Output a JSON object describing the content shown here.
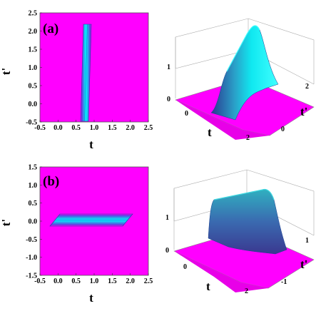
{
  "colors": {
    "background": "#ff00ff",
    "peak": "#00e0ff",
    "mid": "#3060d0"
  },
  "chart_data": [
    {
      "type": "heatmap",
      "panel_label": "(a)",
      "xlabel": "t",
      "ylabel": "t'",
      "xlim": [
        -0.5,
        2.5
      ],
      "ylim": [
        -0.5,
        2.5
      ],
      "xticks": [
        "-0.5",
        "0.0",
        "0.5",
        "1.0",
        "1.5",
        "2.0",
        "2.5"
      ],
      "yticks": [
        "-0.5",
        "0.0",
        "0.5",
        "1.0",
        "1.5",
        "2.0",
        "2.5"
      ],
      "band": {
        "t_center": 1.0,
        "t_halfwidth": 0.15,
        "tp_range": [
          -0.2,
          2.2
        ],
        "skew": 0.35,
        "orientation": "vertical"
      }
    },
    {
      "type": "surface",
      "xlabel": "t",
      "ylabel": "t'",
      "zticks": [
        "0",
        "1"
      ],
      "xticks": [
        "0",
        "2"
      ],
      "yticks": [
        "0",
        "2"
      ]
    },
    {
      "type": "heatmap",
      "panel_label": "(b)",
      "xlabel": "t",
      "ylabel": "t'",
      "xlim": [
        -0.5,
        2.5
      ],
      "ylim": [
        -1.5,
        1.5
      ],
      "xticks": [
        "-0.5",
        "0.0",
        "0.5",
        "1.0",
        "1.5",
        "2.0",
        "2.5"
      ],
      "yticks": [
        "-1.5",
        "-1.0",
        "-0.5",
        "0.0",
        "0.5",
        "1.0",
        "1.5"
      ],
      "band": {
        "tp_center": 0.0,
        "tp_halfwidth": 0.15,
        "t_range": [
          -0.2,
          2.2
        ],
        "skew": 0.35,
        "orientation": "horizontal"
      }
    },
    {
      "type": "surface",
      "xlabel": "t",
      "ylabel": "t'",
      "zticks": [
        "0",
        "1"
      ],
      "xticks": [
        "0",
        "2"
      ],
      "yticks": [
        "-1",
        "1"
      ]
    }
  ]
}
